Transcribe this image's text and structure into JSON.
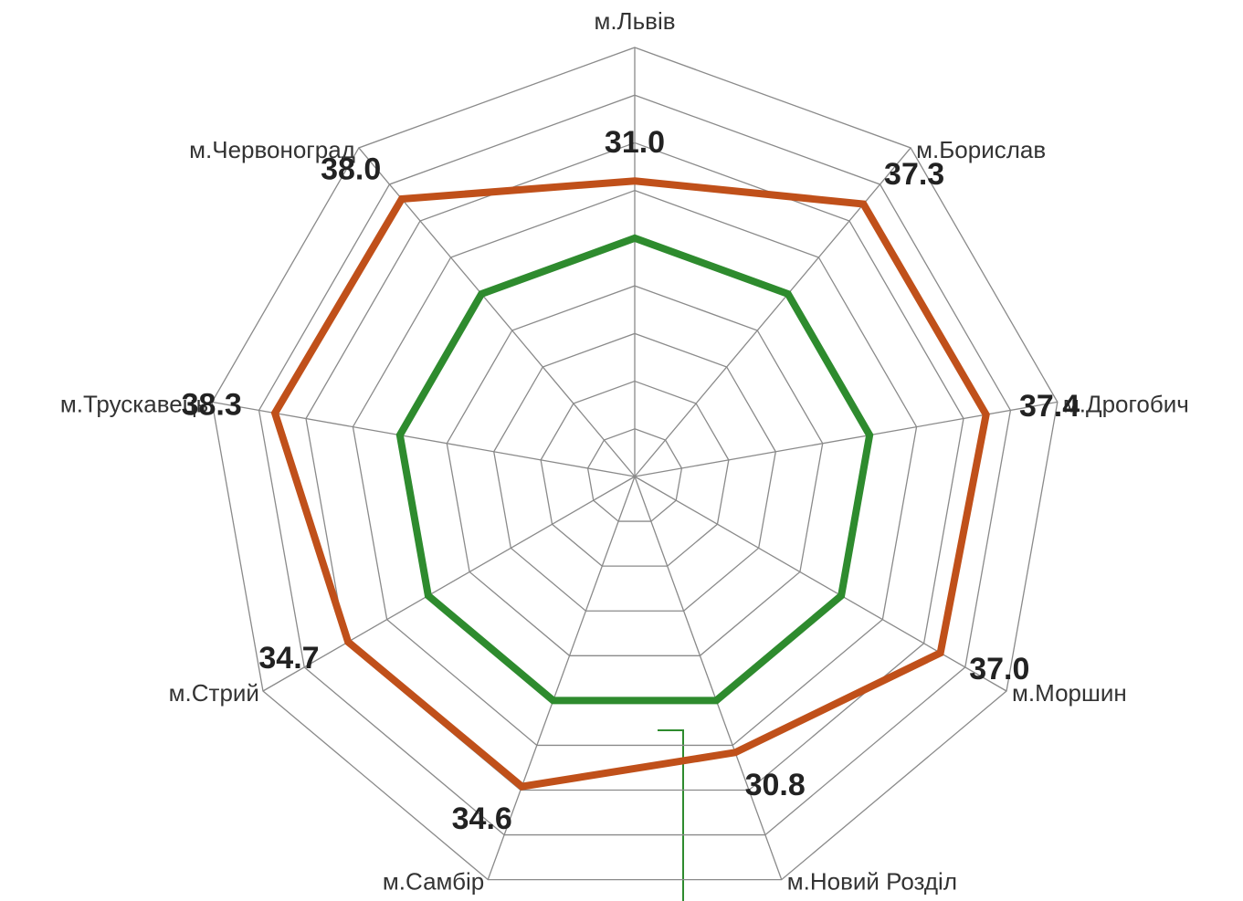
{
  "chart_data": {
    "type": "radar",
    "categories": [
      "м.Львів",
      "м.Борислав",
      "м.Дрогобич",
      "м.Моршин",
      "м.Новий Розділ",
      "м.Самбір",
      "м.Стрий",
      "м.Трускавець",
      "м.Червоноград"
    ],
    "series": [
      {
        "color": "#c0501a",
        "values": [
          31.0,
          37.3,
          37.4,
          37.0,
          30.8,
          34.6,
          34.7,
          38.3,
          38.0
        ],
        "value_labels": [
          "31.0",
          "37.3",
          "37.4",
          "37.0",
          "30.8",
          "34.6",
          "34.7",
          "38.3",
          "38.0"
        ]
      },
      {
        "color": "#2e8b2e",
        "values": [
          25,
          25,
          25,
          25,
          25,
          25,
          25,
          25,
          25
        ]
      }
    ],
    "ylim": [
      0,
      45
    ],
    "yticks": [
      0,
      5,
      10,
      15,
      20,
      25,
      30,
      35,
      40,
      45
    ],
    "grid": true
  }
}
